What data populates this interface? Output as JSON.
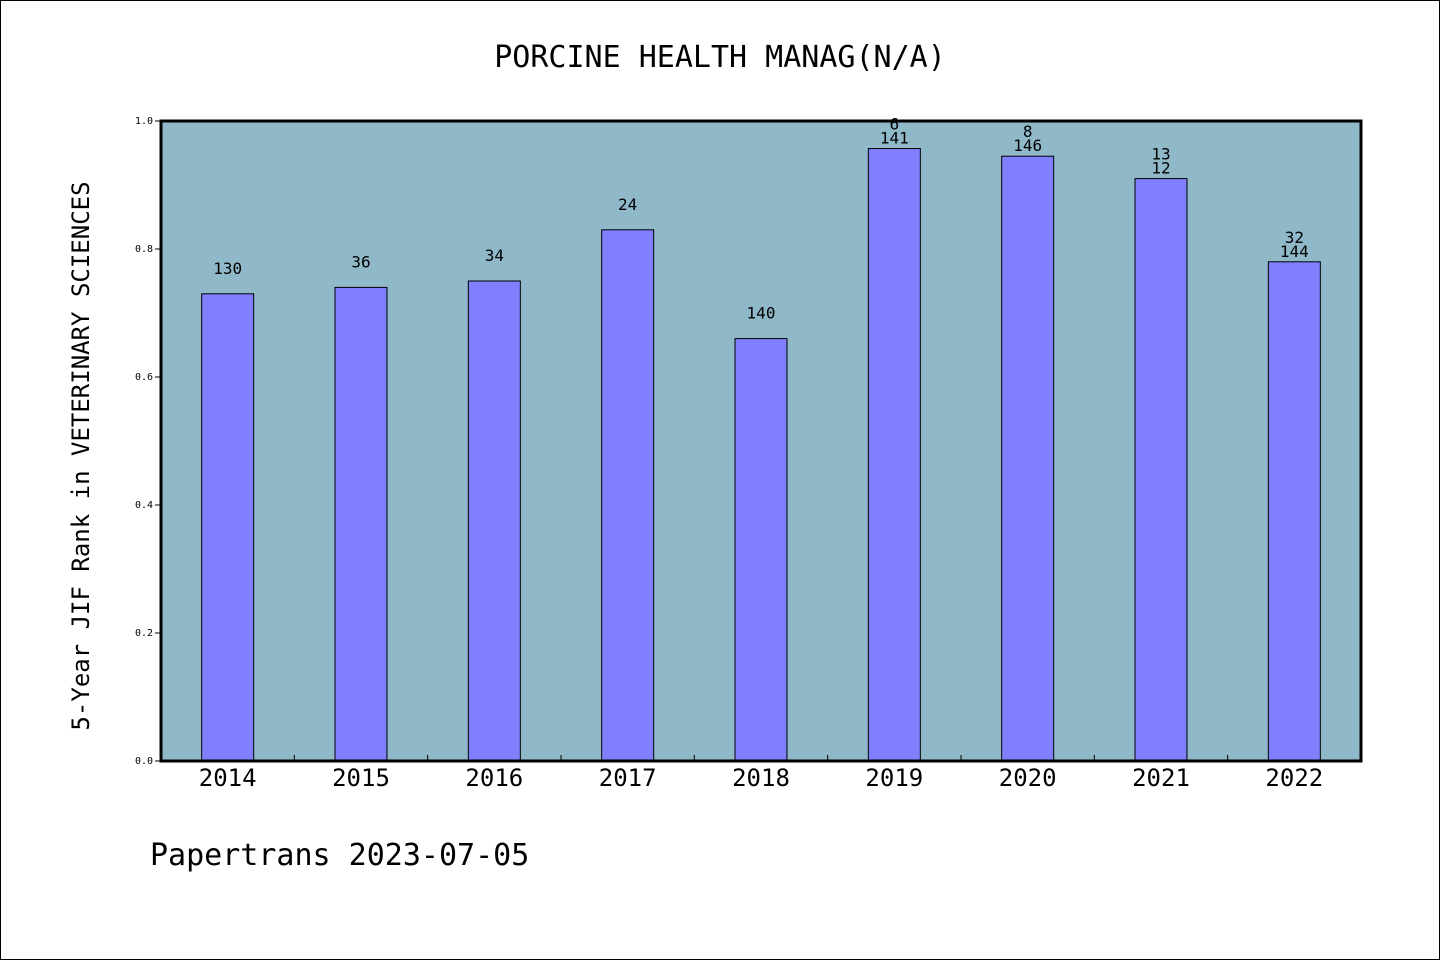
{
  "colors": {
    "plot_bg": "#8fb8c8",
    "bar_fill": "#8080ff",
    "bar_stroke": "#000000"
  },
  "footer": "Papertrans 2023-07-05",
  "chart_data": {
    "type": "bar",
    "title": "PORCINE HEALTH MANAG(N/A)",
    "xlabel": "",
    "ylabel": "5-Year JIF Rank in VETERINARY SCIENCES",
    "ylim": [
      0,
      1.0
    ],
    "yticks": [
      "0.0",
      "0.2",
      "0.4",
      "0.6",
      "0.8",
      "1.0"
    ],
    "grid": false,
    "categories": [
      "2014",
      "2015",
      "2016",
      "2017",
      "2018",
      "2019",
      "2020",
      "2021",
      "2022"
    ],
    "values": [
      0.73,
      0.74,
      0.75,
      0.83,
      0.66,
      0.957,
      0.945,
      0.91,
      0.78
    ],
    "annotations": [
      [
        "130"
      ],
      [
        "36"
      ],
      [
        "34"
      ],
      [
        "24"
      ],
      [
        "140"
      ],
      [
        "6",
        "141"
      ],
      [
        "8",
        "146"
      ],
      [
        "13",
        "12"
      ],
      [
        "32",
        "144"
      ]
    ]
  }
}
